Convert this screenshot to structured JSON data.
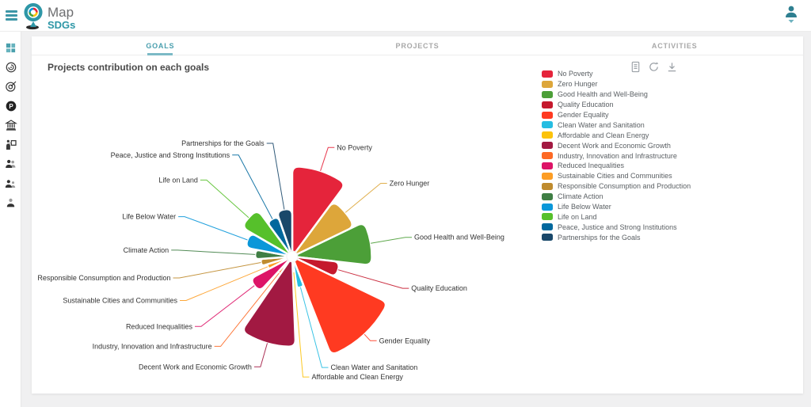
{
  "header": {
    "logo": {
      "line1": "Map",
      "line2": "SDGs"
    },
    "icons": [
      "menu-icon",
      "map-pin-sdg-wheel-icon",
      "user-avatar-icon",
      "chevron-down-icon"
    ]
  },
  "sidebar": {
    "items": [
      {
        "icon": "dashboard-grid-icon",
        "active": true
      },
      {
        "icon": "spiral-goal-icon",
        "active": false
      },
      {
        "icon": "target-arrow-icon",
        "active": false
      },
      {
        "icon": "p-circle-icon",
        "active": false
      },
      {
        "icon": "bank-icon",
        "active": false
      },
      {
        "icon": "person-box-icon",
        "active": false
      },
      {
        "icon": "two-users-icon",
        "active": false
      },
      {
        "icon": "user-pair-icon",
        "active": false
      },
      {
        "icon": "single-user-icon",
        "active": false
      }
    ]
  },
  "tabs": [
    {
      "label": "GOALS",
      "active": true
    },
    {
      "label": "PROJECTS",
      "active": false
    },
    {
      "label": "ACTIVITIES",
      "active": false
    }
  ],
  "toolbox": {
    "icons": [
      "data-view-icon",
      "restore-icon",
      "download-icon"
    ]
  },
  "chart_data": {
    "type": "pie",
    "subtype": "nightingale-rose",
    "title": "Projects contribution on each goals",
    "legend_position": "right",
    "categories": [
      "No Poverty",
      "Zero Hunger",
      "Good Health and Well-Being",
      "Quality Education",
      "Gender Equality",
      "Clean Water and Sanitation",
      "Affordable and Clean Energy",
      "Decent Work and Economic Growth",
      "Industry, Innovation and Infrastructure",
      "Reduced Inequalities",
      "Sustainable Cities and Communities",
      "Responsible Consumption and Production",
      "Climate Action",
      "Life Below Water",
      "Life on Land",
      "Peace, Justice and Strong Institutions",
      "Partnerships for the Goals"
    ],
    "values": [
      17,
      13,
      15,
      9,
      20,
      6,
      3,
      17,
      4,
      9,
      5,
      6,
      7,
      9,
      11,
      8,
      9
    ],
    "colors": [
      "#E5243B",
      "#DDA63A",
      "#4C9F38",
      "#C5192D",
      "#FF3A21",
      "#26BDE2",
      "#FCC30B",
      "#A21942",
      "#FD6925",
      "#DD1367",
      "#FD9D24",
      "#BF8B2E",
      "#3F7E44",
      "#0A97D9",
      "#56C02B",
      "#00689D",
      "#19486A"
    ]
  },
  "colors": {
    "accent_teal": "#3d96a7",
    "tab_active": "#4a9fae",
    "tab_underline": "#7cbac6",
    "page_bg": "#f0f0f1",
    "chart_label_text": "#333333",
    "legend_text": "#5a5f63",
    "icon_gray": "#9aa0a6"
  }
}
